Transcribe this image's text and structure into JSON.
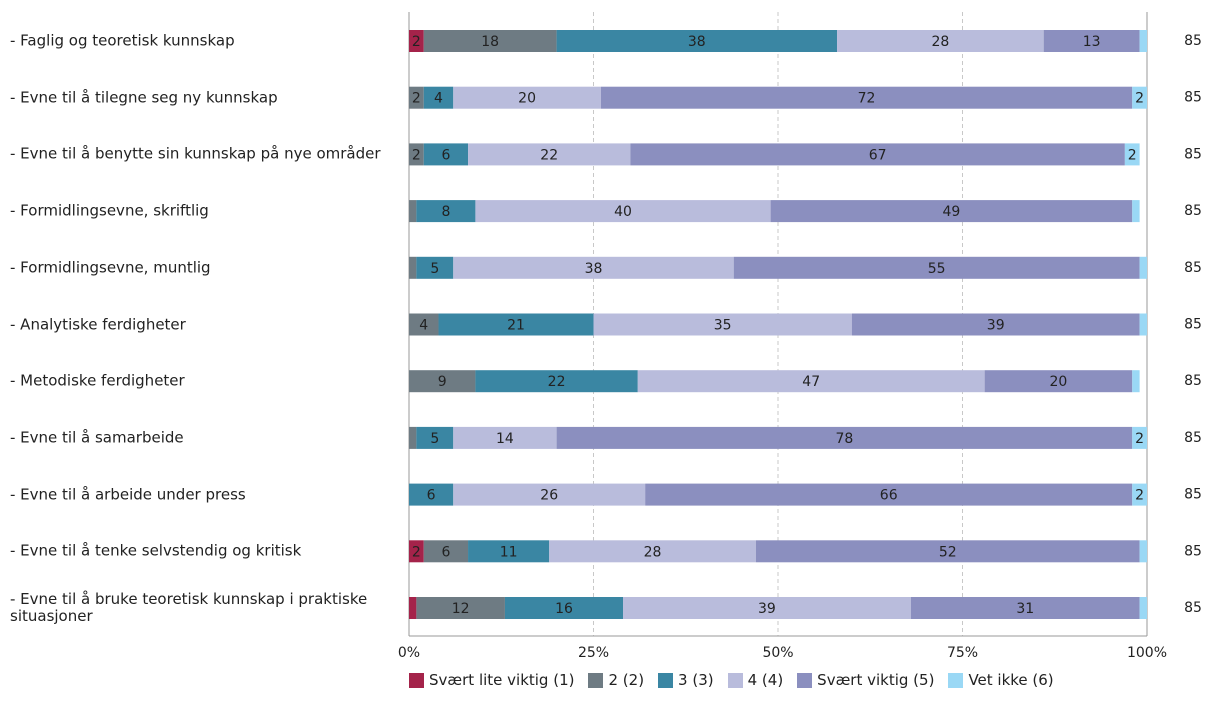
{
  "chart_data": {
    "type": "stacked-bar-horizontal",
    "categories": [
      "- Faglig og teoretisk kunnskap",
      "- Evne til å tilegne seg ny kunnskap",
      "- Evne til å benytte sin kunnskap på nye områder",
      "- Formidlingsevne, skriftlig",
      "- Formidlingsevne, muntlig",
      "- Analytiske ferdigheter",
      "- Metodiske ferdigheter",
      "- Evne til å samarbeide",
      "- Evne til å arbeide under press",
      "- Evne til å tenke selvstendig og kritisk",
      "- Evne til å bruke teoretisk kunnskap i praktiske situasjoner"
    ],
    "series": [
      {
        "name": "Svært lite viktig (1)",
        "color": "#a4234a",
        "values": [
          2,
          0,
          0,
          0,
          0,
          0,
          0,
          0,
          0,
          2,
          1
        ]
      },
      {
        "name": "2 (2)",
        "color": "#6e7b83",
        "values": [
          18,
          2,
          2,
          1,
          1,
          4,
          9,
          1,
          0,
          6,
          12
        ]
      },
      {
        "name": "3 (3)",
        "color": "#3a86a3",
        "values": [
          38,
          4,
          6,
          8,
          5,
          21,
          22,
          5,
          6,
          11,
          16
        ]
      },
      {
        "name": "4 (4)",
        "color": "#b9bcdc",
        "values": [
          28,
          20,
          22,
          40,
          38,
          35,
          47,
          14,
          26,
          28,
          39
        ]
      },
      {
        "name": "Svært viktig (5)",
        "color": "#8b8fbf",
        "values": [
          13,
          72,
          67,
          49,
          55,
          39,
          20,
          78,
          66,
          52,
          31
        ]
      },
      {
        "name": "Vet ikke (6)",
        "color": "#9ad8f5",
        "values": [
          1,
          2,
          2,
          1,
          1,
          1,
          1,
          2,
          2,
          1,
          1
        ]
      }
    ],
    "n": [
      85,
      85,
      85,
      85,
      85,
      85,
      85,
      85,
      85,
      85,
      85
    ],
    "xlim": [
      0,
      100
    ],
    "xticks": [
      {
        "value": 0,
        "label": "0%"
      },
      {
        "value": 25,
        "label": "25%"
      },
      {
        "value": 50,
        "label": "50%"
      },
      {
        "value": 75,
        "label": "75%"
      },
      {
        "value": 100,
        "label": "100%"
      }
    ],
    "grid": true
  }
}
